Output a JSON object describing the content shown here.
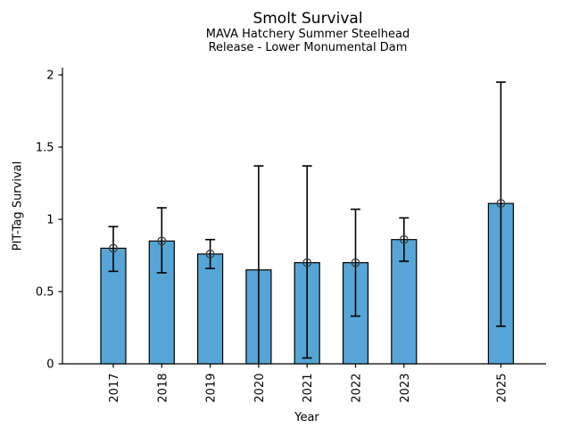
{
  "chart_data": {
    "type": "bar",
    "title": "Smolt Survival",
    "subtitle": [
      "MAVA Hatchery Summer Steelhead",
      "Release - Lower Monumental Dam"
    ],
    "xlabel": "Year",
    "ylabel": "PIT-Tag Survival",
    "categories": [
      "2017",
      "2018",
      "2019",
      "2020",
      "2021",
      "2022",
      "2023",
      "2025"
    ],
    "x_numeric": [
      2017,
      2018,
      2019,
      2020,
      2021,
      2022,
      2023,
      2025
    ],
    "values": [
      0.8,
      0.85,
      0.76,
      0.65,
      0.7,
      0.7,
      0.86,
      1.11
    ],
    "error_low": [
      0.64,
      0.63,
      0.66,
      0.0,
      0.04,
      0.33,
      0.71,
      0.26
    ],
    "error_high": [
      0.95,
      1.08,
      0.86,
      1.37,
      1.37,
      1.07,
      1.01,
      1.95
    ],
    "error_low_cap": [
      true,
      true,
      true,
      false,
      true,
      true,
      true,
      true
    ],
    "error_high_cap": [
      true,
      true,
      true,
      true,
      true,
      true,
      true,
      true
    ],
    "point_marker": [
      true,
      true,
      true,
      false,
      true,
      true,
      true,
      true
    ],
    "yticks": [
      0,
      0.5,
      1,
      1.5,
      2
    ],
    "ytick_labels": [
      "0",
      "0.5",
      "1",
      "1.5",
      "2"
    ],
    "ylim": [
      0,
      2.05
    ],
    "x_tick_rotation": 90,
    "grid": false,
    "legend": null,
    "bar_color": "#56a5d6",
    "bar_edge_color": "#000000",
    "error_color": "#000000",
    "marker_edge_color": "#3c3c3c",
    "axis_color": "#000000"
  }
}
